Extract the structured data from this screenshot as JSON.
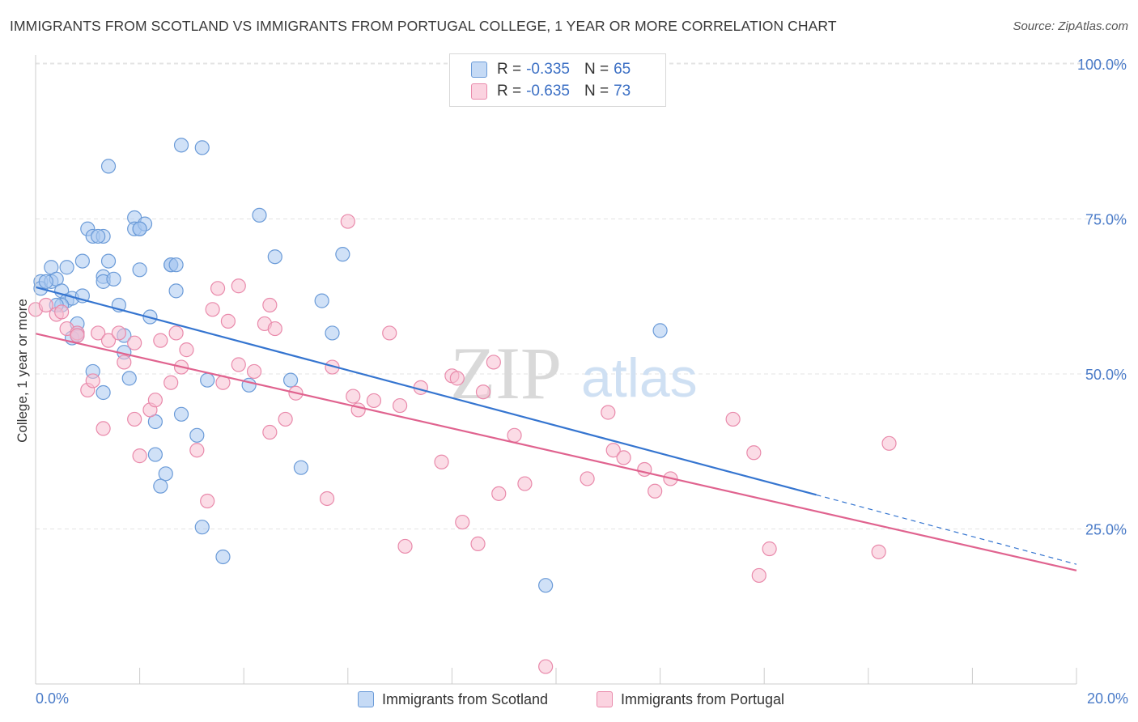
{
  "title": "IMMIGRANTS FROM SCOTLAND VS IMMIGRANTS FROM PORTUGAL COLLEGE, 1 YEAR OR MORE CORRELATION CHART",
  "source": "Source: ZipAtlas.com",
  "watermark": {
    "zip": "ZIP",
    "atlas": "atlas"
  },
  "legend_top": {
    "rows": [
      {
        "r_label": "R =",
        "r_value": "-0.335",
        "n_label": "N =",
        "n_value": "65"
      },
      {
        "r_label": "R =",
        "r_value": "-0.635",
        "n_label": "N =",
        "n_value": "73"
      }
    ]
  },
  "colors": {
    "scotland_fill": "#a9c8f0",
    "scotland_stroke": "#6b9bd8",
    "scotland_line": "#3575d0",
    "portugal_fill": "#f7bfd2",
    "portugal_stroke": "#e98aab",
    "portugal_line": "#e0638f",
    "axis_label": "#4a7bc8",
    "grid": "#e3e3e3"
  },
  "chart_data": {
    "type": "scatter",
    "title": "IMMIGRANTS FROM SCOTLAND VS IMMIGRANTS FROM PORTUGAL COLLEGE, 1 YEAR OR MORE CORRELATION CHART",
    "xlabel": "",
    "ylabel": "College, 1 year or more",
    "xlim": [
      0,
      20
    ],
    "ylim": [
      0,
      100
    ],
    "x_tick_labels": [
      "0.0%",
      "20.0%"
    ],
    "y_tick_labels": [
      "100.0%",
      "75.0%",
      "50.0%",
      "25.0%"
    ],
    "y_ticks": [
      100,
      75,
      50,
      25
    ],
    "grid": true,
    "legend_position": "bottom",
    "series": [
      {
        "name": "Immigrants from Scotland",
        "R": -0.335,
        "N": 65,
        "trend": {
          "x0": 0,
          "y0": 64.0,
          "x1": 15,
          "y1": 30.5,
          "dash_to_x": 20,
          "dash_to_y": 19.3
        },
        "points": [
          [
            0.1,
            64.9
          ],
          [
            0.1,
            63.8
          ],
          [
            0.3,
            67.2
          ],
          [
            0.3,
            64.9
          ],
          [
            0.4,
            65.3
          ],
          [
            0.5,
            63.4
          ],
          [
            0.6,
            67.2
          ],
          [
            0.6,
            61.8
          ],
          [
            0.7,
            62.2
          ],
          [
            0.5,
            61.1
          ],
          [
            0.8,
            56.6
          ],
          [
            0.8,
            58.1
          ],
          [
            0.9,
            68.2
          ],
          [
            0.9,
            62.6
          ],
          [
            1.0,
            73.4
          ],
          [
            1.1,
            72.2
          ],
          [
            1.3,
            72.2
          ],
          [
            1.3,
            65.7
          ],
          [
            1.3,
            64.9
          ],
          [
            1.4,
            68.2
          ],
          [
            1.5,
            65.3
          ],
          [
            1.6,
            61.1
          ],
          [
            1.7,
            56.2
          ],
          [
            1.7,
            53.5
          ],
          [
            1.8,
            49.3
          ],
          [
            1.9,
            75.2
          ],
          [
            1.9,
            73.4
          ],
          [
            2.0,
            73.4
          ],
          [
            2.1,
            74.2
          ],
          [
            2.0,
            66.8
          ],
          [
            2.2,
            59.2
          ],
          [
            2.3,
            42.3
          ],
          [
            2.3,
            37.0
          ],
          [
            2.5,
            33.9
          ],
          [
            2.4,
            31.9
          ],
          [
            2.6,
            67.6
          ],
          [
            2.6,
            67.6
          ],
          [
            2.7,
            63.4
          ],
          [
            2.8,
            86.9
          ],
          [
            2.8,
            43.5
          ],
          [
            1.4,
            83.5
          ],
          [
            3.2,
            86.5
          ],
          [
            3.1,
            40.1
          ],
          [
            3.2,
            25.3
          ],
          [
            3.6,
            20.5
          ],
          [
            3.3,
            49.0
          ],
          [
            4.1,
            48.2
          ],
          [
            4.3,
            75.6
          ],
          [
            4.6,
            68.9
          ],
          [
            4.9,
            49.0
          ],
          [
            5.1,
            34.9
          ],
          [
            5.5,
            61.8
          ],
          [
            5.7,
            56.6
          ],
          [
            5.9,
            69.3
          ],
          [
            9.8,
            15.9
          ],
          [
            12.0,
            57.0
          ],
          [
            1.1,
            50.4
          ],
          [
            1.3,
            47.0
          ],
          [
            0.7,
            55.8
          ],
          [
            0.4,
            61.1
          ],
          [
            2.7,
            67.6
          ],
          [
            2.0,
            73.4
          ],
          [
            1.2,
            72.2
          ],
          [
            0.8,
            56.2
          ],
          [
            0.2,
            64.9
          ]
        ]
      },
      {
        "name": "Immigrants from Portugal",
        "R": -0.635,
        "N": 73,
        "trend": {
          "x0": 0,
          "y0": 56.5,
          "x1": 20,
          "y1": 18.3
        },
        "points": [
          [
            0.0,
            60.4
          ],
          [
            0.2,
            61.1
          ],
          [
            0.4,
            59.6
          ],
          [
            0.5,
            60.0
          ],
          [
            0.6,
            57.3
          ],
          [
            0.8,
            56.6
          ],
          [
            0.8,
            56.2
          ],
          [
            1.0,
            47.4
          ],
          [
            1.1,
            48.9
          ],
          [
            1.2,
            56.6
          ],
          [
            1.3,
            41.2
          ],
          [
            1.4,
            55.4
          ],
          [
            1.6,
            56.6
          ],
          [
            1.7,
            51.9
          ],
          [
            1.9,
            55.0
          ],
          [
            1.9,
            42.7
          ],
          [
            2.0,
            36.8
          ],
          [
            2.2,
            44.2
          ],
          [
            2.3,
            45.8
          ],
          [
            2.4,
            55.4
          ],
          [
            2.6,
            48.6
          ],
          [
            2.7,
            56.6
          ],
          [
            2.8,
            51.1
          ],
          [
            2.9,
            53.9
          ],
          [
            3.1,
            37.7
          ],
          [
            3.3,
            29.5
          ],
          [
            3.4,
            60.4
          ],
          [
            3.5,
            63.8
          ],
          [
            3.6,
            48.6
          ],
          [
            3.7,
            58.5
          ],
          [
            3.9,
            51.5
          ],
          [
            3.9,
            64.2
          ],
          [
            4.2,
            50.4
          ],
          [
            4.4,
            58.1
          ],
          [
            4.5,
            40.6
          ],
          [
            4.5,
            61.1
          ],
          [
            4.6,
            57.3
          ],
          [
            4.8,
            42.7
          ],
          [
            5.0,
            46.9
          ],
          [
            5.6,
            29.9
          ],
          [
            5.7,
            51.1
          ],
          [
            6.0,
            74.6
          ],
          [
            6.1,
            46.4
          ],
          [
            6.2,
            44.2
          ],
          [
            6.5,
            45.7
          ],
          [
            6.8,
            56.6
          ],
          [
            7.0,
            44.9
          ],
          [
            7.1,
            22.2
          ],
          [
            7.4,
            47.8
          ],
          [
            7.8,
            35.8
          ],
          [
            8.0,
            49.7
          ],
          [
            8.1,
            49.3
          ],
          [
            8.2,
            26.1
          ],
          [
            8.5,
            22.6
          ],
          [
            8.6,
            47.1
          ],
          [
            8.8,
            51.9
          ],
          [
            8.9,
            30.7
          ],
          [
            9.2,
            40.1
          ],
          [
            9.4,
            32.3
          ],
          [
            9.8,
            2.8
          ],
          [
            10.6,
            33.1
          ],
          [
            11.0,
            43.8
          ],
          [
            11.1,
            37.7
          ],
          [
            11.3,
            36.5
          ],
          [
            11.7,
            34.6
          ],
          [
            11.9,
            31.1
          ],
          [
            12.2,
            33.1
          ],
          [
            13.4,
            42.7
          ],
          [
            13.8,
            37.3
          ],
          [
            13.9,
            17.5
          ],
          [
            14.1,
            21.8
          ],
          [
            16.2,
            21.3
          ],
          [
            16.4,
            38.8
          ]
        ]
      }
    ]
  },
  "bottom_legend": [
    "Immigrants from Scotland",
    "Immigrants from Portugal"
  ]
}
